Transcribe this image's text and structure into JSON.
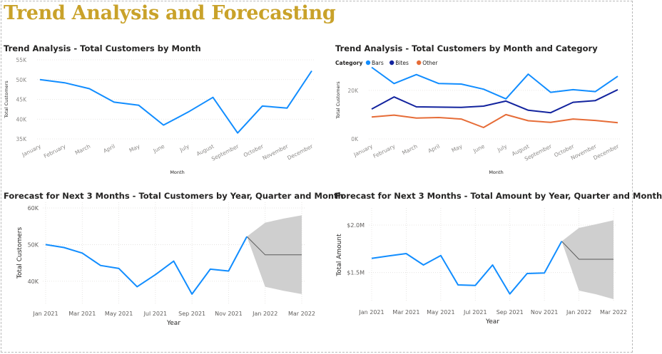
{
  "page": {
    "title": "Trend Analysis and Forecasting"
  },
  "chart_data": [
    {
      "type": "line",
      "title": "Trend Analysis - Total Customers by Month",
      "xlabel": "Month",
      "ylabel": "Total Customers",
      "categories": [
        "January",
        "February",
        "March",
        "April",
        "May",
        "June",
        "July",
        "August",
        "September",
        "October",
        "November",
        "December"
      ],
      "y_ticks": [
        "35K",
        "40K",
        "45K",
        "50K",
        "55K"
      ],
      "ylim": [
        35000,
        55000
      ],
      "grid": true,
      "series": [
        {
          "values": [
            50000,
            49200,
            47700,
            44300,
            43500,
            38500,
            41800,
            45500,
            36500,
            43300,
            42800,
            52200
          ],
          "color": "#118dff"
        }
      ]
    },
    {
      "type": "line",
      "title": "Trend Analysis - Total Customers by Month and Category",
      "xlabel": "Month",
      "ylabel": "Total Customers",
      "legend_title": "Category",
      "legend_position": "top-left",
      "categories": [
        "January",
        "February",
        "March",
        "April",
        "May",
        "June",
        "July",
        "August",
        "September",
        "October",
        "November",
        "December"
      ],
      "y_ticks": [
        "0K",
        "20K"
      ],
      "ylim": [
        0,
        32000
      ],
      "grid": true,
      "series": [
        {
          "name": "Bars",
          "color": "#118dff",
          "values": [
            29500,
            22800,
            26500,
            22800,
            22600,
            20500,
            16500,
            26700,
            19200,
            20300,
            19500,
            25800
          ]
        },
        {
          "name": "Bites",
          "color": "#12239e",
          "values": [
            12300,
            17300,
            13200,
            13100,
            13000,
            13500,
            15600,
            11800,
            10800,
            15100,
            15800,
            20300
          ]
        },
        {
          "name": "Other",
          "color": "#e66c37",
          "values": [
            9000,
            9800,
            8600,
            8800,
            8200,
            4700,
            10000,
            7500,
            6800,
            8200,
            7600,
            6700
          ]
        }
      ]
    },
    {
      "type": "line",
      "title": "Forecast for Next 3 Months - Total Customers by Year, Quarter and Month",
      "xlabel": "Year",
      "ylabel": "Total Customers",
      "x_ticks": [
        "Jan 2021",
        "Mar 2021",
        "May 2021",
        "Jul 2021",
        "Sep 2021",
        "Nov 2021",
        "Jan 2022",
        "Mar 2022"
      ],
      "y_ticks": [
        "40K",
        "50K",
        "60K"
      ],
      "ylim": [
        35500,
        60000
      ],
      "grid": true,
      "series": [
        {
          "color": "#118dff",
          "values": [
            50000,
            49200,
            47700,
            44300,
            43500,
            38500,
            41800,
            45500,
            36500,
            43300,
            42800,
            52200
          ]
        }
      ],
      "forecast": {
        "values": [
          52200,
          47200,
          47200,
          47200
        ],
        "upper": [
          52200,
          56000,
          57100,
          58000
        ],
        "lower": [
          52200,
          38500,
          37400,
          36500
        ]
      }
    },
    {
      "type": "line",
      "title": "Forecast for Next 3 Months - Total Amount by Year, Quarter and Month",
      "xlabel": "Year",
      "ylabel": "Total Amount",
      "x_ticks": [
        "Jan 2021",
        "Mar 2021",
        "May 2021",
        "Jul 2021",
        "Sep 2021",
        "Nov 2021",
        "Jan 2022",
        "Mar 2022"
      ],
      "y_ticks": [
        "$1.5M",
        "$2.0M"
      ],
      "ylim": [
        1250000,
        2120000
      ],
      "grid": true,
      "series": [
        {
          "color": "#118dff",
          "values": [
            1650000,
            1675000,
            1700000,
            1580000,
            1680000,
            1370000,
            1365000,
            1580000,
            1275000,
            1490000,
            1495000,
            1830000
          ]
        }
      ],
      "forecast": {
        "values": [
          1830000,
          1640000,
          1640000,
          1640000
        ],
        "upper": [
          1830000,
          1970000,
          2010000,
          2050000
        ],
        "lower": [
          1830000,
          1310000,
          1270000,
          1220000
        ]
      }
    }
  ]
}
